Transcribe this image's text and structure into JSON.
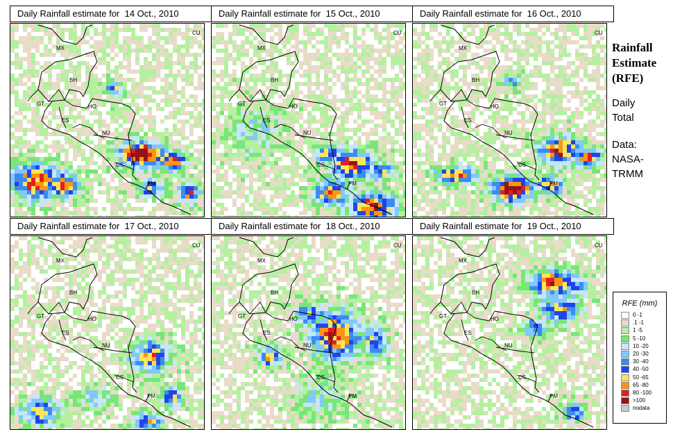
{
  "panels": [
    {
      "title": "Daily Rainfall estimate for  14 Oct., 2010"
    },
    {
      "title": "Daily Rainfall estimate for  15 Oct., 2010"
    },
    {
      "title": "Daily Rainfall estimate for  16 Oct., 2010"
    },
    {
      "title": "Daily Rainfall estimate for  17 Oct., 2010"
    },
    {
      "title": "Daily Rainfall estimate for  18 Oct., 2010"
    },
    {
      "title": "Daily Rainfall estimate for  19 Oct., 2010"
    }
  ],
  "map_labels": {
    "mx": "MX",
    "cu": "CU",
    "bh": "BH",
    "gt": "GT",
    "ho": "HO",
    "es": "ES",
    "nu": "NU",
    "cs": "CS",
    "pm": "PM"
  },
  "side": {
    "title_line1": "Rainfall",
    "title_line2": "Estimate",
    "title_line3": "(RFE)",
    "daily": "Daily",
    "total": "Total",
    "data_label": "Data:",
    "source_line1": "NASA-",
    "source_line2": "TRMM"
  },
  "legend": {
    "title": "RFE (mm)",
    "items": [
      {
        "label": "0 -1",
        "color": "#ffffff"
      },
      {
        "label": ".1 -1",
        "color": "#e8dcc8"
      },
      {
        "label": "1 -5",
        "color": "#b4f0a0"
      },
      {
        "label": "5 -10",
        "color": "#78e678"
      },
      {
        "label": "10 -20",
        "color": "#c8e6fa"
      },
      {
        "label": "20 -30",
        "color": "#82c8fa"
      },
      {
        "label": "30 -40",
        "color": "#3c8cf0"
      },
      {
        "label": "40 -50",
        "color": "#1e46e6"
      },
      {
        "label": "50 -65",
        "color": "#fae65a"
      },
      {
        "label": "65 -80",
        "color": "#fa9614"
      },
      {
        "label": "80 -100",
        "color": "#e61e1e"
      },
      {
        "label": ">100",
        "color": "#961414"
      },
      {
        "label": "nodata",
        "color": "#c8c8c8"
      }
    ]
  }
}
